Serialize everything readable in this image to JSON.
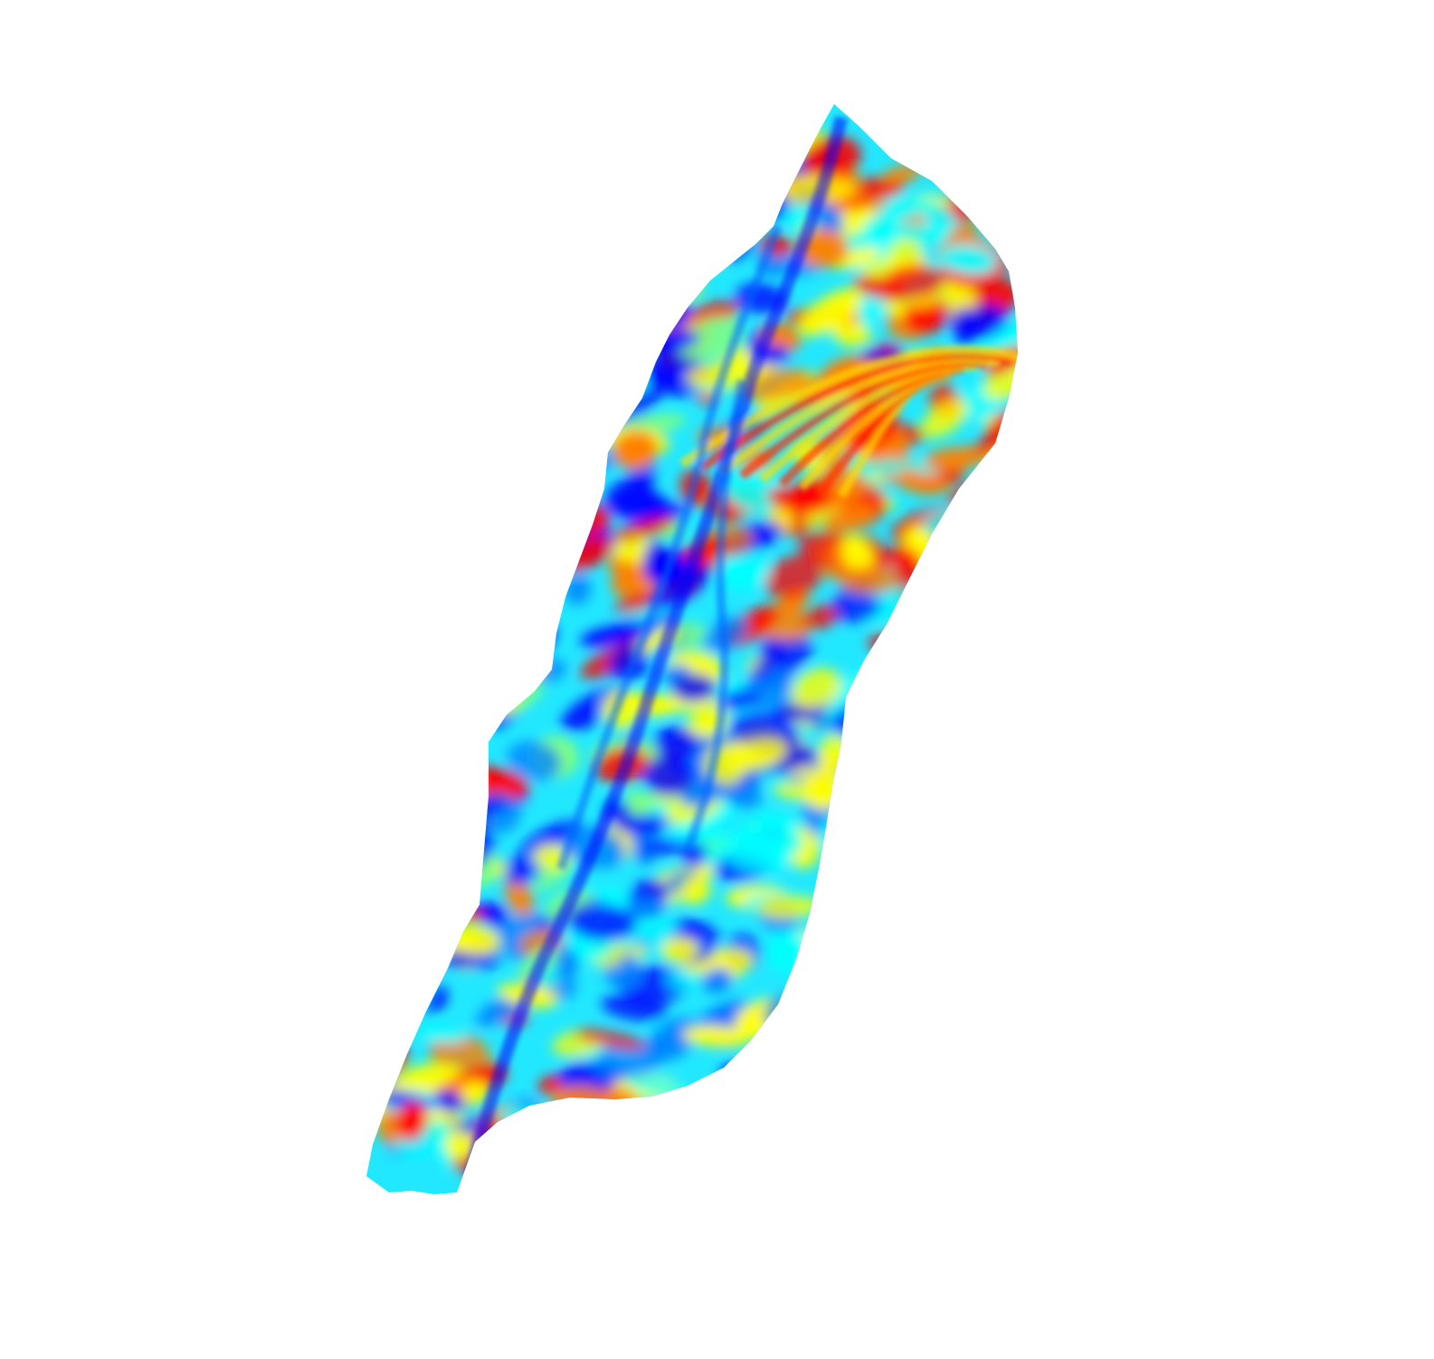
{
  "figure": {
    "background": "#ffffff",
    "colormap": [
      "#00008f",
      "#0000ff",
      "#0080ff",
      "#00ffff",
      "#80ff80",
      "#ffff00",
      "#ff8000",
      "#ff0000",
      "#800000"
    ]
  }
}
